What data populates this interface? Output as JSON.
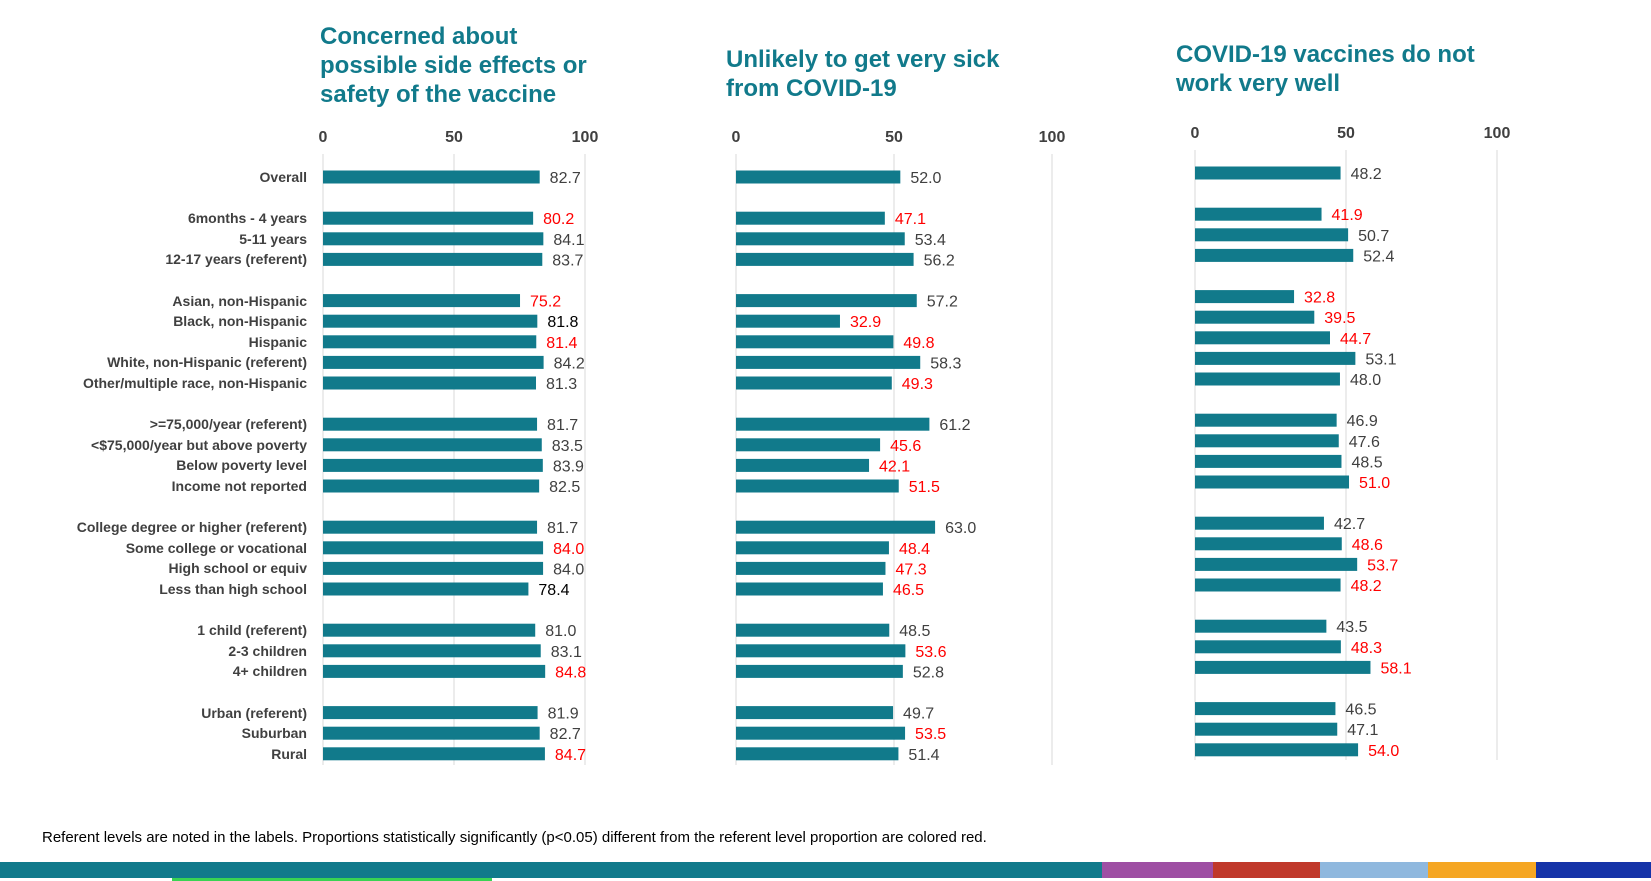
{
  "row_labels": [
    "Overall",
    "6months - 4 years",
    "5-11 years",
    "12-17 years (referent)",
    "Asian, non-Hispanic",
    "Black, non-Hispanic",
    "Hispanic",
    "White, non-Hispanic (referent)",
    "Other/multiple race, non-Hispanic",
    ">=75,000/year (referent)",
    "<$75,000/year but above poverty",
    "Below poverty level",
    "Income not reported",
    "College degree or higher (referent)",
    "Some college or vocational",
    "High school or equiv",
    "Less than high school",
    "1 child (referent)",
    "2-3 children",
    "4+ children",
    "Urban (referent)",
    "Suburban",
    "Rural"
  ],
  "group_starts": [
    0,
    1,
    4,
    9,
    13,
    17,
    20
  ],
  "footnote": "Referent levels are noted in the labels. Proportions statistically significantly (p<0.05) different from the referent level proportion are colored red.",
  "colors": {
    "bar": "#117a8b",
    "title": "#117a8b",
    "significant": "#ff0000",
    "normal_value": "#404040",
    "black_value": "#000000",
    "gridline": "#d9d9d9",
    "footer": [
      "#117a8b",
      "#9e4ea3",
      "#c0392b",
      "#8fb8de",
      "#f5a623",
      "#1533a8"
    ],
    "footer_line": "#39d353"
  },
  "chart_data": [
    {
      "type": "bar",
      "orientation": "horizontal",
      "title": "Concerned about possible side effects or safety of the vaccine",
      "xlim": [
        0,
        100
      ],
      "ticks": [
        0,
        50,
        100
      ],
      "values": [
        82.7,
        80.2,
        84.1,
        83.7,
        75.2,
        81.8,
        81.4,
        84.2,
        81.3,
        81.7,
        83.5,
        83.9,
        82.5,
        81.7,
        84.0,
        84.0,
        78.4,
        81.0,
        83.1,
        84.8,
        81.9,
        82.7,
        84.7
      ],
      "value_labels": [
        "82.7",
        "80.2",
        "84.1",
        "83.7",
        "75.2",
        "81.8",
        "81.4",
        "84.2",
        "81.3",
        "81.7",
        "83.5",
        "83.9",
        "82.5",
        "81.7",
        "84.0",
        "84.0",
        "78.4",
        "81.0",
        "83.1",
        "84.8",
        "81.9",
        "82.7",
        "84.7"
      ],
      "label_styles": [
        "n",
        "r",
        "n",
        "n",
        "r",
        "b",
        "r",
        "n",
        "n",
        "n",
        "n",
        "n",
        "n",
        "n",
        "r",
        "n",
        "b",
        "n",
        "n",
        "r",
        "n",
        "n",
        "r"
      ]
    },
    {
      "type": "bar",
      "orientation": "horizontal",
      "title": "Unlikely to get very sick from COVID-19",
      "xlim": [
        0,
        100
      ],
      "ticks": [
        0,
        50,
        100
      ],
      "values": [
        52.0,
        47.1,
        53.4,
        56.2,
        57.2,
        32.9,
        49.8,
        58.3,
        49.3,
        61.2,
        45.6,
        42.1,
        51.5,
        63.0,
        48.4,
        47.3,
        46.5,
        48.5,
        53.6,
        52.8,
        49.7,
        53.5,
        51.4
      ],
      "value_labels": [
        "52.0",
        "47.1",
        "53.4",
        "56.2",
        "57.2",
        "32.9",
        "49.8",
        "58.3",
        "49.3",
        "61.2",
        "45.6",
        "42.1",
        "51.5",
        "63.0",
        "48.4",
        "47.3",
        "46.5",
        "48.5",
        "53.6",
        "52.8",
        "49.7",
        "53.5",
        "51.4"
      ],
      "label_styles": [
        "n",
        "r",
        "n",
        "n",
        "n",
        "r",
        "r",
        "n",
        "r",
        "n",
        "r",
        "r",
        "r",
        "n",
        "r",
        "r",
        "r",
        "n",
        "r",
        "n",
        "n",
        "r",
        "n"
      ]
    },
    {
      "type": "bar",
      "orientation": "horizontal",
      "title": "COVID-19 vaccines do not work very well",
      "xlim": [
        0,
        100
      ],
      "ticks": [
        0,
        50,
        100
      ],
      "values": [
        48.2,
        41.9,
        50.7,
        52.4,
        32.8,
        39.5,
        44.7,
        53.1,
        48.0,
        46.9,
        47.6,
        48.5,
        51.0,
        42.7,
        48.6,
        53.7,
        48.2,
        43.5,
        48.3,
        58.1,
        46.5,
        47.1,
        54.0
      ],
      "value_labels": [
        "48.2",
        "41.9",
        "50.7",
        "52.4",
        "32.8",
        "39.5",
        "44.7",
        "53.1",
        "48.0",
        "46.9",
        "47.6",
        "48.5",
        "51.0",
        "42.7",
        "48.6",
        "53.7",
        "48.2",
        "43.5",
        "48.3",
        "58.1",
        "46.5",
        "47.1",
        "54.0"
      ],
      "label_styles": [
        "n",
        "r",
        "n",
        "n",
        "r",
        "r",
        "r",
        "n",
        "n",
        "n",
        "n",
        "n",
        "r",
        "n",
        "r",
        "r",
        "r",
        "n",
        "r",
        "r",
        "n",
        "n",
        "r"
      ]
    }
  ]
}
